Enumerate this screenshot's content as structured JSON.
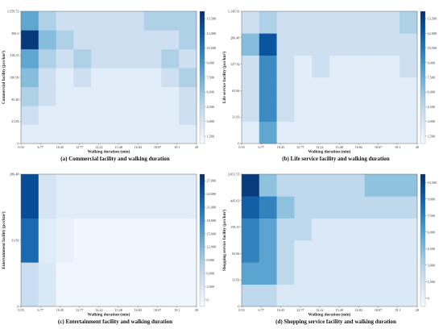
{
  "chart_data": [
    {
      "type": "heatmap",
      "caption": "(a) Commercial facility and walking duration",
      "xlabel": "Walking duration (min)",
      "ylabel": "Commercial facility (pcs/km²)",
      "x_ticks": [
        "0.55",
        "6.77",
        "10.45",
        "12.77",
        "14.22",
        "15.48",
        "16.82",
        "18.07",
        "19.1",
        "20"
      ],
      "y_ticks": [
        "0",
        "31.83",
        "95.49",
        "190.99",
        "318.31",
        "509.3",
        "1,559.72"
      ],
      "colorbar_ticks": [
        "1,500",
        "3,000",
        "4,500",
        "6,000",
        "7,500",
        "9,000",
        "10,500",
        "12,000",
        "13,500"
      ],
      "vmin": 0,
      "vmax": 14000,
      "z": [
        [
          1500,
          1500,
          1500,
          1500,
          1500,
          1500,
          1500,
          1500,
          1500,
          1500
        ],
        [
          3000,
          1500,
          1500,
          1500,
          1500,
          1500,
          1500,
          1500,
          1500,
          3000
        ],
        [
          4500,
          3000,
          1500,
          1500,
          1500,
          1500,
          1500,
          1500,
          1500,
          3000
        ],
        [
          6000,
          3000,
          1500,
          3000,
          1500,
          1500,
          1500,
          1500,
          3000,
          4500
        ],
        [
          7500,
          4500,
          3000,
          4500,
          3000,
          3000,
          3000,
          3000,
          4500,
          3000
        ],
        [
          13500,
          6000,
          4500,
          3000,
          3000,
          3000,
          3000,
          3000,
          3000,
          4500
        ],
        [
          7500,
          4500,
          3000,
          3000,
          3000,
          3000,
          3000,
          4500,
          4500,
          4500
        ]
      ]
    },
    {
      "type": "heatmap",
      "caption": "(b) Life service facility and walking duration",
      "xlabel": "Walking duration (min)",
      "ylabel": "Life service facility (pcs/km²)",
      "x_ticks": [
        "0.55",
        "6.77",
        "10.45",
        "12.77",
        "14.22",
        "15.48",
        "16.82",
        "18.07",
        "19.1",
        "20"
      ],
      "y_ticks": [
        "0",
        "31.83",
        "63.66",
        "127.32",
        "286.48",
        "1,145.91"
      ],
      "colorbar_ticks": [
        "1,500",
        "3,000",
        "4,500",
        "6,000",
        "7,500",
        "9,000",
        "10,500",
        "12,000",
        "13,500"
      ],
      "vmin": 0,
      "vmax": 14000,
      "z": [
        [
          1500,
          7500,
          1500,
          1500,
          1500,
          1500,
          1500,
          1500,
          1500,
          1500
        ],
        [
          3000,
          9000,
          3000,
          1500,
          1500,
          1500,
          1500,
          1500,
          1500,
          1500
        ],
        [
          3000,
          9000,
          3000,
          1500,
          1500,
          1500,
          1500,
          1500,
          1500,
          1500
        ],
        [
          3000,
          9000,
          3000,
          1500,
          3000,
          1500,
          1500,
          1500,
          1500,
          3000
        ],
        [
          6000,
          12000,
          3000,
          3000,
          3000,
          3000,
          3000,
          3000,
          3000,
          3000
        ],
        [
          3000,
          4500,
          3000,
          3000,
          3000,
          3000,
          3000,
          3000,
          3000,
          4500
        ]
      ]
    },
    {
      "type": "heatmap",
      "caption": "(c) Entertainment facility and walking duration",
      "xlabel": "Walking duration (min)",
      "ylabel": "Entertainment facility (pcs/km²)",
      "x_ticks": [
        "0.55",
        "6.77",
        "10.45",
        "12.77",
        "14.22",
        "15.48",
        "16.82",
        "18.07",
        "19.1",
        "20"
      ],
      "y_ticks": [
        "0",
        "31.83",
        "286.48"
      ],
      "colorbar_ticks": [
        "0",
        "3,000",
        "6,000",
        "9,000",
        "12,000",
        "15,000",
        "18,000",
        "21,000",
        "24,000",
        "27,000"
      ],
      "vmin": 0,
      "vmax": 27000,
      "z": [
        [
          6000,
          4000,
          1000,
          1000,
          1000,
          1000,
          1000,
          1000,
          1000,
          1000
        ],
        [
          21000,
          3000,
          2000,
          1000,
          1000,
          1000,
          1000,
          1000,
          1000,
          1000
        ],
        [
          24000,
          4500,
          3000,
          3000,
          3000,
          3000,
          3000,
          3000,
          3000,
          3000
        ]
      ]
    },
    {
      "type": "heatmap",
      "caption": "(d) Shopping service facility and walking duration",
      "xlabel": "Walking duration (min)",
      "ylabel": "Shopping service facility (pcs/km²)",
      "x_ticks": [
        "0.55",
        "6.77",
        "10.45",
        "12.77",
        "14.22",
        "15.48",
        "16.82",
        "18.07",
        "19.1",
        "20"
      ],
      "y_ticks": [
        "0",
        "31.83",
        "63.66",
        "159.15",
        "445.63",
        "3,051.55"
      ],
      "colorbar_ticks": [
        "0",
        "1,500",
        "3,000",
        "4,500",
        "6,000",
        "7,500",
        "9,000",
        "10,500"
      ],
      "vmin": 0,
      "vmax": 11000,
      "z": [
        [
          3000,
          3000,
          1500,
          1500,
          1500,
          1500,
          1500,
          1500,
          1500,
          1500
        ],
        [
          6000,
          6000,
          3000,
          1500,
          1500,
          1500,
          1500,
          1500,
          1500,
          1500
        ],
        [
          7500,
          6000,
          3000,
          1500,
          1500,
          1500,
          1500,
          1500,
          1500,
          1500
        ],
        [
          7500,
          6000,
          3000,
          3000,
          1500,
          1500,
          1500,
          1500,
          1500,
          1500
        ],
        [
          9000,
          7500,
          4500,
          3000,
          3000,
          3000,
          3000,
          3000,
          3000,
          3000
        ],
        [
          10500,
          4500,
          3000,
          3000,
          3000,
          3000,
          3000,
          4500,
          4500,
          4500
        ]
      ]
    }
  ]
}
